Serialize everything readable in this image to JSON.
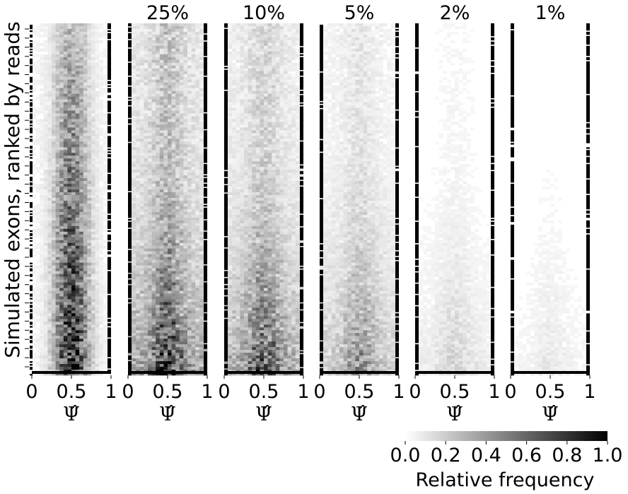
{
  "figure": {
    "ylabel": "Simulated exons, ranked by reads",
    "xlabel": "Ψ̂",
    "x_ticks": [
      "0",
      "0.5",
      "1"
    ]
  },
  "colors": {
    "low": "#ffffff",
    "high": "#000000"
  },
  "colorbar": {
    "label": "Relative frequency",
    "ticks": [
      "0.0",
      "0.2",
      "0.4",
      "0.6",
      "0.8",
      "1.0"
    ]
  },
  "chart_data": [
    {
      "type": "heatmap",
      "title": "",
      "xlabel": "Ψ̂",
      "ylabel": "Simulated exons, ranked by reads",
      "xlim": [
        0,
        1
      ],
      "description_of_values": "mid_intensity"
    },
    {
      "type": "heatmap",
      "title": "25%",
      "xlabel": "Ψ̂",
      "xlim": [
        0,
        1
      ]
    },
    {
      "type": "heatmap",
      "title": "10%",
      "xlabel": "Ψ̂",
      "xlim": [
        0,
        1
      ]
    },
    {
      "type": "heatmap",
      "title": "5%",
      "xlabel": "Ψ̂",
      "xlim": [
        0,
        1
      ]
    },
    {
      "type": "heatmap",
      "title": "2%",
      "xlabel": "Ψ̂",
      "xlim": [
        0,
        1
      ]
    },
    {
      "type": "heatmap",
      "title": "1%",
      "xlabel": "Ψ̂",
      "xlim": [
        0,
        1
      ]
    }
  ],
  "colorbar_range": [
    0.0,
    1.0
  ]
}
